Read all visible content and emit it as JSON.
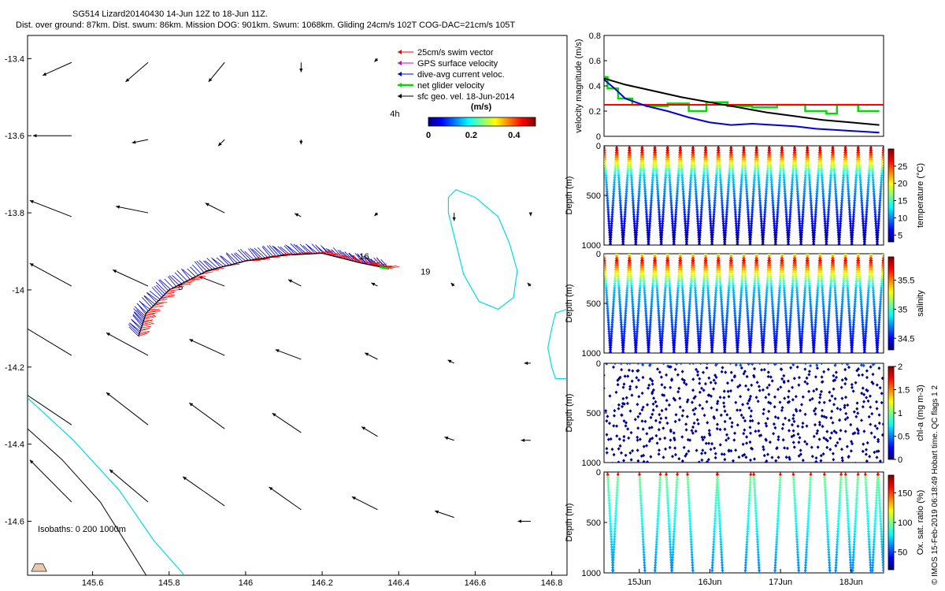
{
  "header": {
    "line1": "SG514 Lizard20140430 14-Jun 12Z to 18-Jun 11Z.",
    "line2": "Dist. over ground: 87km. Dist. swum: 86km. Mission DOG: 901km. Swum: 1068km. Gliding 24cm/s 102T COG-DAC=21cm/s 105T"
  },
  "credit": "© IMOS 15-Feb-2019 06:18:49 Hobart time. QC flags 1  2",
  "colors": {
    "swim": "#ff0000",
    "gps": "#cc00cc",
    "dac": "#0000cc",
    "net": "#00dd00",
    "sfc": "#000000",
    "bathy_cyan": "#00dddd",
    "bathy_black": "#000000",
    "reef_fill": "#e8c8b0"
  },
  "chart_data": [
    {
      "type": "map",
      "xlim": [
        145.43,
        146.84
      ],
      "ylim": [
        -14.74,
        -13.34
      ],
      "x_ticks": [
        "145.6",
        "145.8",
        "146",
        "146.2",
        "146.4",
        "146.6",
        "146.8"
      ],
      "x_tick_values": [
        145.6,
        145.8,
        146.0,
        146.2,
        146.4,
        146.6,
        146.8
      ],
      "y_ticks": [
        "-13.4",
        "-13.6",
        "-13.8",
        "-14",
        "-14.2",
        "-14.4",
        "-14.6"
      ],
      "y_tick_values": [
        -13.4,
        -13.6,
        -13.8,
        -14.0,
        -14.2,
        -14.4,
        -14.6
      ],
      "legend": [
        {
          "label": "25cm/s swim vector",
          "color": "#ff0000"
        },
        {
          "label": "GPS surface velocity",
          "color": "#cc00cc"
        },
        {
          "label": "dive-avg current veloc.",
          "color": "#0000cc"
        },
        {
          "label": "net glider velocity",
          "color": "#00dd00"
        },
        {
          "label": "sfc geo. vel. 18-Jun-2014",
          "color": "#000000"
        }
      ],
      "colorbar": {
        "label": "(m/s)",
        "ticks": [
          "0",
          "0.2",
          "0.4"
        ],
        "tick_values": [
          0,
          0.2,
          0.4
        ],
        "max": 0.5
      },
      "annotations": [
        {
          "text": "4h",
          "lon": 146.39,
          "lat": -13.55
        },
        {
          "text": "16",
          "lon": 146.31,
          "lat": -13.92
        },
        {
          "text": "19",
          "lon": 146.47,
          "lat": -13.96
        },
        {
          "text": "5",
          "lon": 145.83,
          "lat": -14.0
        }
      ],
      "isobath_label": "Isobaths: 0   200  1000m",
      "track": [
        [
          145.72,
          -14.12
        ],
        [
          145.74,
          -14.06
        ],
        [
          145.8,
          -14.0
        ],
        [
          145.9,
          -13.95
        ],
        [
          146.0,
          -13.925
        ],
        [
          146.1,
          -13.91
        ],
        [
          146.2,
          -13.905
        ],
        [
          146.3,
          -13.93
        ],
        [
          146.375,
          -13.945
        ]
      ],
      "geo_vectors": [
        [
          145.545,
          -13.41,
          0.18,
          0.08
        ],
        [
          145.745,
          -13.41,
          0.14,
          0.12
        ],
        [
          145.945,
          -13.41,
          0.1,
          0.12
        ],
        [
          146.145,
          -13.41,
          0.0,
          0.06
        ],
        [
          146.345,
          -13.4,
          0.02,
          0.02
        ],
        [
          145.545,
          -13.6,
          0.24,
          0.0
        ],
        [
          145.745,
          -13.61,
          0.1,
          0.02
        ],
        [
          145.945,
          -13.61,
          0.04,
          0.04
        ],
        [
          146.145,
          -13.61,
          0.0,
          0.03
        ],
        [
          145.545,
          -13.81,
          0.26,
          -0.1
        ],
        [
          145.745,
          -13.8,
          0.2,
          -0.04
        ],
        [
          145.945,
          -13.8,
          0.12,
          -0.06
        ],
        [
          146.145,
          -13.81,
          0.04,
          -0.02
        ],
        [
          146.345,
          -13.8,
          0.02,
          0.02
        ],
        [
          146.545,
          -13.8,
          0.0,
          0.05
        ],
        [
          146.745,
          -13.8,
          0.0,
          0.02
        ],
        [
          145.545,
          -13.99,
          0.26,
          -0.14
        ],
        [
          145.745,
          -13.99,
          0.22,
          -0.1
        ],
        [
          145.945,
          -13.99,
          0.16,
          -0.06
        ],
        [
          146.145,
          -13.99,
          0.08,
          -0.04
        ],
        [
          146.345,
          -13.99,
          0.04,
          -0.02
        ],
        [
          146.545,
          -13.99,
          0.02,
          -0.02
        ],
        [
          146.745,
          -13.99,
          0.02,
          -0.02
        ],
        [
          145.545,
          -14.17,
          0.3,
          -0.18
        ],
        [
          145.745,
          -14.17,
          0.26,
          -0.14
        ],
        [
          145.945,
          -14.17,
          0.22,
          -0.1
        ],
        [
          146.145,
          -14.18,
          0.16,
          -0.06
        ],
        [
          146.345,
          -14.18,
          0.08,
          -0.04
        ],
        [
          146.545,
          -14.19,
          0.04,
          -0.02
        ],
        [
          146.745,
          -14.19,
          0.04,
          0.0
        ],
        [
          145.545,
          -14.35,
          0.3,
          -0.2
        ],
        [
          145.745,
          -14.35,
          0.26,
          -0.2
        ],
        [
          145.945,
          -14.36,
          0.22,
          -0.16
        ],
        [
          146.145,
          -14.37,
          0.18,
          -0.12
        ],
        [
          146.345,
          -14.38,
          0.1,
          -0.06
        ],
        [
          146.545,
          -14.39,
          0.06,
          -0.02
        ],
        [
          146.745,
          -14.39,
          0.06,
          0.0
        ],
        [
          145.545,
          -14.55,
          0.26,
          -0.26
        ],
        [
          145.745,
          -14.55,
          0.24,
          -0.2
        ],
        [
          145.945,
          -14.56,
          0.26,
          -0.18
        ],
        [
          146.145,
          -14.57,
          0.2,
          -0.14
        ],
        [
          146.345,
          -14.57,
          0.16,
          -0.08
        ],
        [
          146.545,
          -14.59,
          0.12,
          -0.04
        ],
        [
          146.745,
          -14.6,
          0.08,
          0.0
        ]
      ],
      "isobath_200": [
        [
          145.43,
          -14.28
        ],
        [
          145.55,
          -14.39
        ],
        [
          145.67,
          -14.52
        ],
        [
          145.76,
          -14.65
        ],
        [
          145.84,
          -14.74
        ]
      ],
      "isobath_1000": [
        [
          145.43,
          -14.36
        ],
        [
          145.52,
          -14.44
        ],
        [
          145.62,
          -14.55
        ],
        [
          145.69,
          -14.66
        ],
        [
          145.74,
          -14.74
        ]
      ],
      "reef_a": [
        [
          146.53,
          -13.76
        ],
        [
          146.55,
          -13.74
        ],
        [
          146.6,
          -13.76
        ],
        [
          146.66,
          -13.81
        ],
        [
          146.69,
          -13.88
        ],
        [
          146.71,
          -13.95
        ],
        [
          146.7,
          -14.02
        ],
        [
          146.66,
          -14.05
        ],
        [
          146.61,
          -14.03
        ],
        [
          146.57,
          -13.96
        ],
        [
          146.55,
          -13.88
        ],
        [
          146.53,
          -13.8
        ]
      ],
      "reef_b": [
        [
          146.84,
          -14.05
        ],
        [
          146.81,
          -14.06
        ],
        [
          146.8,
          -14.1
        ],
        [
          146.79,
          -14.15
        ],
        [
          146.8,
          -14.2
        ],
        [
          146.81,
          -14.23
        ],
        [
          146.84,
          -14.23
        ]
      ]
    },
    {
      "type": "line",
      "ylabel": "velocity magnitude (m/s)",
      "ylim": [
        0,
        0.8
      ],
      "y_ticks": [
        "0",
        "0.2",
        "0.4",
        "0.6",
        "0.8"
      ],
      "y_tick_values": [
        0,
        0.2,
        0.4,
        0.6,
        0.8
      ],
      "xlim": [
        14.5,
        18.46
      ],
      "x_ticks": [
        "15Jun",
        "16Jun",
        "17Jun",
        "18Jun"
      ],
      "x_tick_values": [
        15,
        16,
        17,
        18
      ],
      "series": [
        {
          "color": "#00dd00",
          "x": [
            14.5,
            14.55,
            14.55,
            14.7,
            14.7,
            14.9,
            14.9,
            15.1,
            15.1,
            15.4,
            15.4,
            15.7,
            15.7,
            15.95,
            15.95,
            16.25,
            16.25,
            16.6,
            16.6,
            16.95,
            16.95,
            17.35,
            17.35,
            17.65,
            17.65,
            17.8,
            17.8,
            18.1,
            18.1,
            18.4
          ],
          "y": [
            0.47,
            0.47,
            0.38,
            0.38,
            0.3,
            0.3,
            0.25,
            0.25,
            0.24,
            0.24,
            0.26,
            0.26,
            0.2,
            0.2,
            0.27,
            0.27,
            0.24,
            0.24,
            0.23,
            0.23,
            0.25,
            0.25,
            0.2,
            0.2,
            0.18,
            0.18,
            0.25,
            0.25,
            0.2,
            0.2
          ]
        },
        {
          "color": "#ff0000",
          "x": [
            14.5,
            18.46
          ],
          "y": [
            0.25,
            0.25
          ]
        },
        {
          "color": "#000000",
          "x": [
            14.5,
            14.8,
            15.2,
            15.6,
            16.0,
            16.4,
            16.8,
            17.2,
            17.6,
            18.0,
            18.4
          ],
          "y": [
            0.46,
            0.41,
            0.36,
            0.31,
            0.27,
            0.23,
            0.19,
            0.16,
            0.13,
            0.11,
            0.09
          ]
        },
        {
          "color": "#0000dd",
          "x": [
            14.5,
            14.65,
            14.8,
            15.1,
            15.4,
            15.7,
            16.0,
            16.3,
            16.6,
            16.9,
            17.2,
            17.5,
            17.8,
            18.1,
            18.4
          ],
          "y": [
            0.45,
            0.38,
            0.3,
            0.24,
            0.2,
            0.15,
            0.11,
            0.09,
            0.1,
            0.09,
            0.08,
            0.06,
            0.05,
            0.04,
            0.03
          ]
        }
      ]
    },
    {
      "type": "scatter",
      "ylabel": "Depth (m)",
      "clabel": "temperature (°C)",
      "ylim": [
        0,
        1000
      ],
      "y_ticks": [
        "0",
        "500",
        "1000"
      ],
      "y_tick_values": [
        0,
        500,
        1000
      ],
      "clim": [
        3,
        30
      ],
      "c_ticks": [
        "5",
        "10",
        "15",
        "20",
        "25"
      ],
      "c_tick_values": [
        5,
        10,
        15,
        20,
        25
      ],
      "profile": {
        "kind": "yoyo",
        "cycles": 22,
        "max_depth": 990,
        "top_c": 28,
        "bottom_c": 4,
        "thermocline": 300
      }
    },
    {
      "type": "scatter",
      "ylabel": "Depth (m)",
      "clabel": "salinity",
      "ylim": [
        0,
        1000
      ],
      "y_ticks": [
        "0",
        "500",
        "1000"
      ],
      "y_tick_values": [
        0,
        500,
        1000
      ],
      "clim": [
        34.3,
        35.9
      ],
      "c_ticks": [
        "34.5",
        "35",
        "35.5"
      ],
      "c_tick_values": [
        34.5,
        35.0,
        35.5
      ],
      "profile": {
        "kind": "yoyo",
        "cycles": 22,
        "max_depth": 990,
        "top_c": 35.2,
        "peak_c": 35.75,
        "bottom_c": 34.45,
        "thermocline": 350
      }
    },
    {
      "type": "scatter",
      "ylabel": "Depth (m)",
      "clabel": "chl-a (mg m-3)",
      "ylim": [
        0,
        1000
      ],
      "y_ticks": [
        "0",
        "500",
        "1000"
      ],
      "y_tick_values": [
        0,
        500,
        1000
      ],
      "clim": [
        0,
        2
      ],
      "c_ticks": [
        "0",
        "0.5",
        "1",
        "1.5",
        "2"
      ],
      "c_tick_values": [
        0,
        0.5,
        1.0,
        1.5,
        2.0
      ],
      "profile": {
        "kind": "sparse",
        "cycles": 22,
        "max_depth": 990,
        "value": 0.05,
        "surface_value": 0.4
      }
    },
    {
      "type": "scatter",
      "ylabel": "Depth (m)",
      "clabel": "Ox. sat. ratio (%)",
      "ylim": [
        0,
        1000
      ],
      "y_ticks": [
        "0",
        "500",
        "1000"
      ],
      "y_tick_values": [
        0,
        500,
        1000
      ],
      "clim": [
        20,
        180
      ],
      "c_ticks": [
        "50",
        "100",
        "150"
      ],
      "c_tick_values": [
        50,
        100,
        150
      ],
      "profile": {
        "kind": "partial",
        "max_depth": 1000,
        "top_c": 100,
        "bottom_c": 60,
        "cycle_starts": [
          14.55,
          14.62,
          15.0,
          15.22,
          15.38,
          15.46,
          15.68,
          16.03,
          16.1,
          16.5,
          16.62,
          16.92,
          17.18,
          17.35,
          17.62,
          17.78,
          17.92,
          18.02,
          18.2,
          18.3,
          18.38
        ]
      }
    }
  ]
}
